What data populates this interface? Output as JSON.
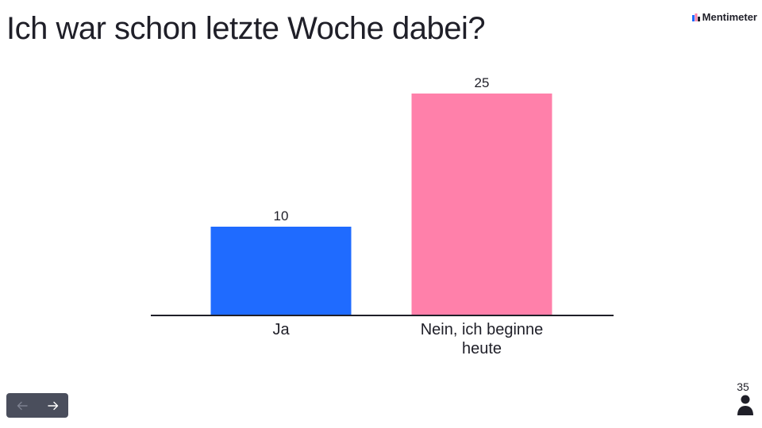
{
  "slide": {
    "title": "Ich war schon letzte Woche dabei?"
  },
  "brand": {
    "name": "Mentimeter"
  },
  "responses": {
    "count": "35"
  },
  "nav": {
    "prev_icon": "arrow-left-icon",
    "next_icon": "arrow-right-icon"
  },
  "colors": {
    "bar_ja": "#1f6bff",
    "bar_nein": "#ff80aa",
    "axis": "#1f1f28",
    "nav_bg": "#4a4e5c"
  },
  "chart_data": {
    "type": "bar",
    "categories": [
      "Ja",
      "Nein, ich beginne heute"
    ],
    "category_lines": [
      [
        "Ja"
      ],
      [
        "Nein, ich beginne",
        "heute"
      ]
    ],
    "values": [
      10,
      25
    ],
    "colors": [
      "#1f6bff",
      "#ff80aa"
    ],
    "title": "",
    "xlabel": "",
    "ylabel": "",
    "ylim": [
      0,
      25
    ],
    "grid": false,
    "data_labels": true
  }
}
